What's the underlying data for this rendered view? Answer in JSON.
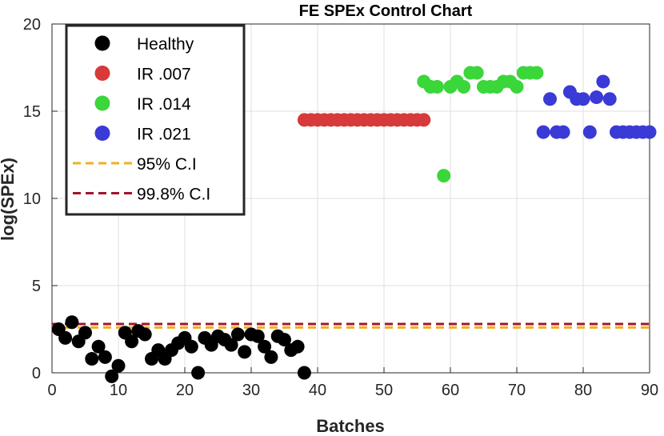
{
  "chart_data": {
    "type": "scatter",
    "title": "FE SPEx Control Chart",
    "xlabel": "Batches",
    "ylabel": "log(SPEx)",
    "xlim": [
      0,
      90
    ],
    "ylim": [
      0,
      20
    ],
    "xticks": [
      0,
      10,
      20,
      30,
      40,
      50,
      60,
      70,
      80,
      90
    ],
    "yticks": [
      0,
      5,
      10,
      15,
      20
    ],
    "grid": true,
    "legend_position": "top-left",
    "series": [
      {
        "name": "Healthy",
        "color": "#000000",
        "points": [
          [
            1,
            2.5
          ],
          [
            2,
            2.0
          ],
          [
            3,
            2.9
          ],
          [
            4,
            1.8
          ],
          [
            5,
            2.3
          ],
          [
            6,
            0.8
          ],
          [
            7,
            1.5
          ],
          [
            8,
            0.9
          ],
          [
            9,
            -0.2
          ],
          [
            10,
            0.4
          ],
          [
            11,
            2.3
          ],
          [
            12,
            1.8
          ],
          [
            13,
            2.4
          ],
          [
            14,
            2.2
          ],
          [
            15,
            0.8
          ],
          [
            16,
            1.3
          ],
          [
            17,
            0.8
          ],
          [
            18,
            1.3
          ],
          [
            19,
            1.7
          ],
          [
            20,
            2.0
          ],
          [
            21,
            1.5
          ],
          [
            22,
            0.0
          ],
          [
            23,
            2.0
          ],
          [
            24,
            1.6
          ],
          [
            25,
            2.1
          ],
          [
            26,
            1.9
          ],
          [
            27,
            1.6
          ],
          [
            28,
            2.2
          ],
          [
            29,
            1.2
          ],
          [
            30,
            2.2
          ],
          [
            31,
            2.1
          ],
          [
            32,
            1.5
          ],
          [
            33,
            0.9
          ],
          [
            34,
            2.1
          ],
          [
            35,
            1.9
          ],
          [
            36,
            1.3
          ],
          [
            37,
            1.5
          ],
          [
            38,
            0.0
          ]
        ]
      },
      {
        "name": "IR .007",
        "color": "#d63a3a",
        "points": [
          [
            38,
            14.5
          ],
          [
            39,
            14.5
          ],
          [
            40,
            14.5
          ],
          [
            41,
            14.5
          ],
          [
            42,
            14.5
          ],
          [
            43,
            14.5
          ],
          [
            44,
            14.5
          ],
          [
            45,
            14.5
          ],
          [
            46,
            14.5
          ],
          [
            47,
            14.5
          ],
          [
            48,
            14.5
          ],
          [
            49,
            14.5
          ],
          [
            50,
            14.5
          ],
          [
            51,
            14.5
          ],
          [
            52,
            14.5
          ],
          [
            53,
            14.5
          ],
          [
            54,
            14.5
          ],
          [
            55,
            14.5
          ],
          [
            56,
            14.5
          ]
        ]
      },
      {
        "name": "IR .014",
        "color": "#3ad63a",
        "points": [
          [
            56,
            16.7
          ],
          [
            57,
            16.4
          ],
          [
            58,
            16.4
          ],
          [
            59,
            11.3
          ],
          [
            60,
            16.4
          ],
          [
            61,
            16.7
          ],
          [
            62,
            16.4
          ],
          [
            63,
            17.2
          ],
          [
            64,
            17.2
          ],
          [
            65,
            16.4
          ],
          [
            66,
            16.4
          ],
          [
            67,
            16.4
          ],
          [
            68,
            16.7
          ],
          [
            69,
            16.7
          ],
          [
            70,
            16.4
          ],
          [
            71,
            17.2
          ],
          [
            72,
            17.2
          ],
          [
            73,
            17.2
          ]
        ]
      },
      {
        "name": "IR .021",
        "color": "#3a3ad6",
        "points": [
          [
            74,
            13.8
          ],
          [
            75,
            15.7
          ],
          [
            76,
            13.8
          ],
          [
            77,
            13.8
          ],
          [
            78,
            16.1
          ],
          [
            79,
            15.7
          ],
          [
            80,
            15.7
          ],
          [
            81,
            13.8
          ],
          [
            82,
            15.8
          ],
          [
            83,
            16.7
          ],
          [
            84,
            15.7
          ],
          [
            85,
            13.8
          ],
          [
            86,
            13.8
          ],
          [
            87,
            13.8
          ],
          [
            88,
            13.8
          ],
          [
            89,
            13.8
          ],
          [
            90,
            13.8
          ]
        ]
      }
    ],
    "thresholds": [
      {
        "name": "95% C.I",
        "value": 2.6,
        "color": "#edb120"
      },
      {
        "name": "99.8% C.I",
        "value": 2.8,
        "color": "#a2142f"
      }
    ]
  }
}
